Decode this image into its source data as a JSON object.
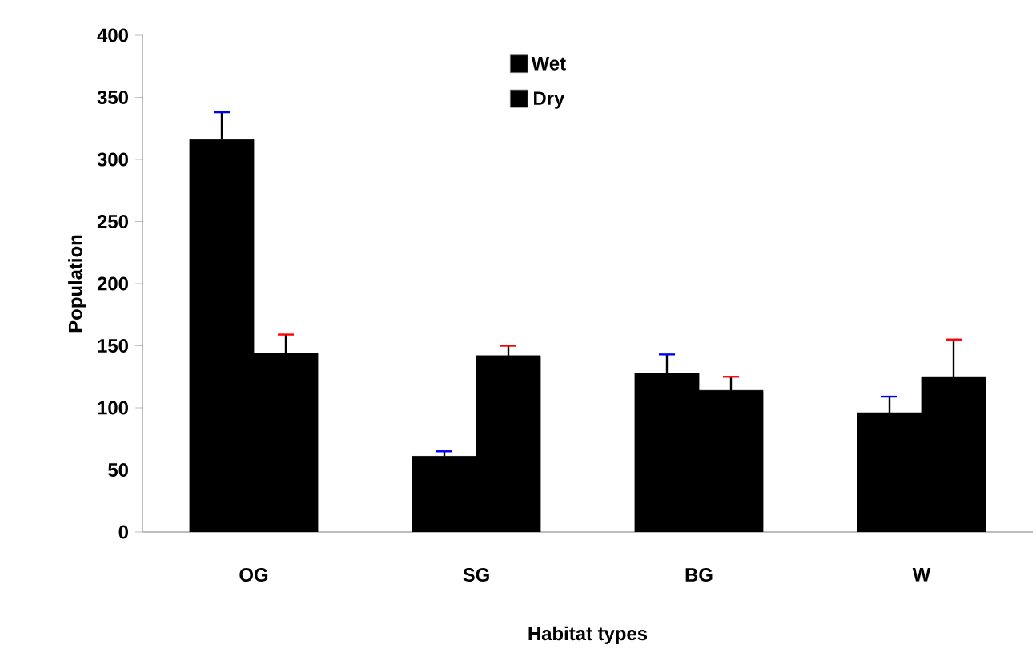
{
  "chart_data": {
    "type": "bar",
    "xlabel": "Habitat types",
    "ylabel": "Population",
    "categories": [
      "OG",
      "SG",
      "BG",
      "W"
    ],
    "series": [
      {
        "name": "Wet",
        "color": "#000000",
        "values": [
          316,
          61,
          128,
          96
        ],
        "errors": [
          22,
          4,
          15,
          13
        ]
      },
      {
        "name": "Dry",
        "color": "#000000",
        "values": [
          144,
          142,
          114,
          125
        ],
        "errors": [
          15,
          8,
          11,
          30
        ]
      }
    ],
    "ylim": [
      0,
      400
    ],
    "yticks": [
      0,
      50,
      100,
      150,
      200,
      250,
      300,
      350,
      400
    ],
    "grid": false,
    "legend": "top"
  }
}
